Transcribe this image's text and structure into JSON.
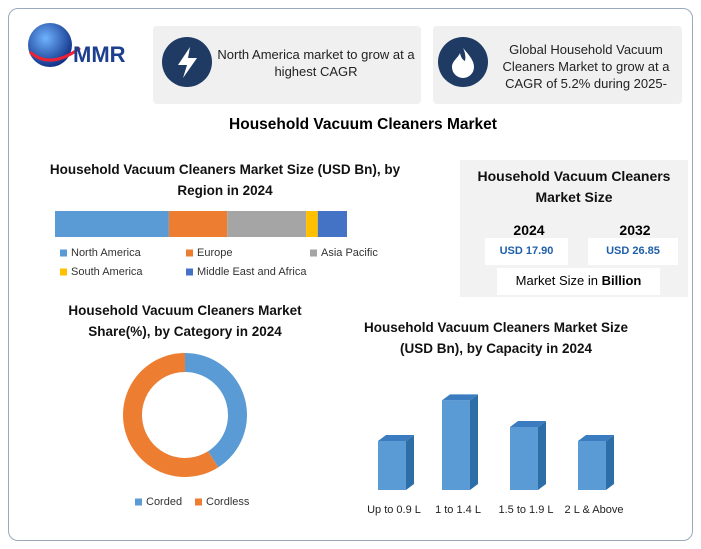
{
  "header": {
    "logo": "MMR",
    "cards": [
      "North America market to grow at a highest CAGR",
      "Global Household Vacuum Cleaners Market to grow at a CAGR of 5.2% during 2025-"
    ]
  },
  "title": "Household Vacuum Cleaners Market",
  "market_size": {
    "title": "Household Vacuum Cleaners Market Size",
    "years": [
      "2024",
      "2032"
    ],
    "values": [
      "USD 17.90",
      "USD 26.85"
    ],
    "note": "Market Size in ",
    "note_bold": "Billion"
  },
  "chart_data": [
    {
      "type": "stacked-bar",
      "title": "Household Vacuum Cleaners Market Size (USD Bn), by Region in 2024",
      "series": [
        {
          "name": "North America",
          "color": "#5b9bd5",
          "values": [
            39
          ]
        },
        {
          "name": "Europe",
          "color": "#ed7d31",
          "values": [
            20
          ]
        },
        {
          "name": "Asia Pacific",
          "color": "#a5a5a5",
          "values": [
            27
          ]
        },
        {
          "name": "South America",
          "color": "#ffc000",
          "values": [
            4
          ]
        },
        {
          "name": "Middle East and Africa",
          "color": "#4472c4",
          "values": [
            10
          ]
        }
      ]
    },
    {
      "type": "donut",
      "title": "Household Vacuum Cleaners Market Share(%), by Category in 2024",
      "categories": [
        "Corded",
        "Cordless"
      ],
      "values": [
        41,
        59
      ],
      "colors": [
        "#5b9bd5",
        "#ed7d31"
      ]
    },
    {
      "type": "bar3d",
      "title": "Household Vacuum Cleaners Market Size (USD Bn), by Capacity in 2024",
      "categories": [
        "Up to 0.9 L",
        "1 to 1.4 L",
        "1.5 to 1.9 L",
        "2 L & Above"
      ],
      "values": [
        3.5,
        6.4,
        4.5,
        3.5
      ],
      "color": "#5b9bd5"
    }
  ]
}
